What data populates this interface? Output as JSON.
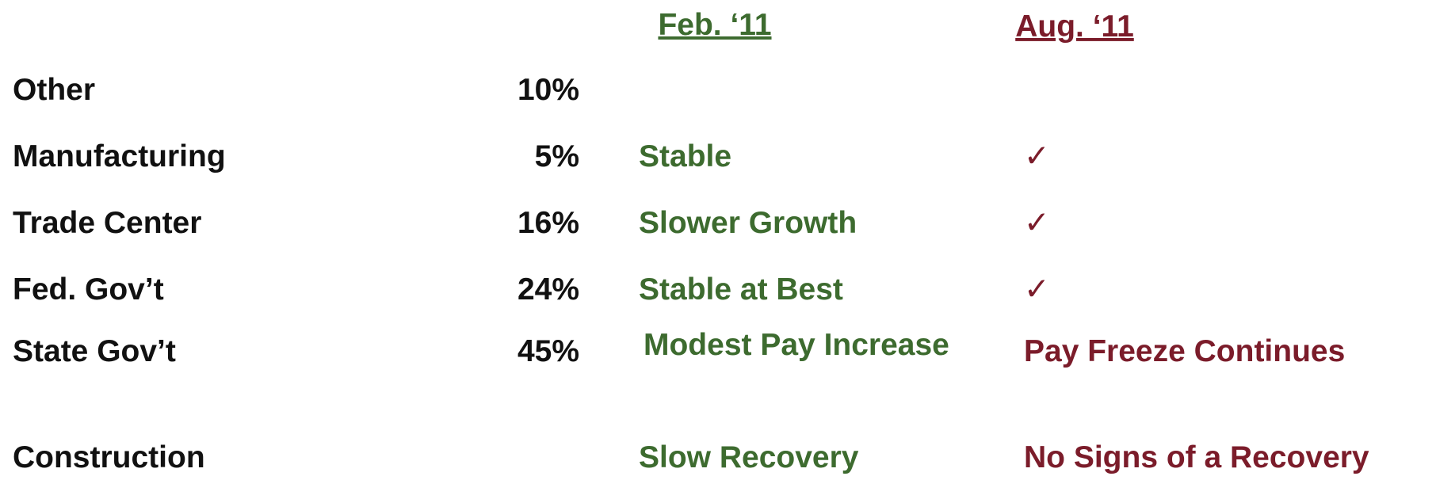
{
  "header": {
    "feb": "Feb. ‘11",
    "aug": "Aug. ‘11"
  },
  "rows": [
    {
      "label": "Other",
      "share": "10%"
    },
    {
      "label": "Manufacturing",
      "share": "5%",
      "feb": "Stable",
      "aug": "✓"
    },
    {
      "label": "Trade Center",
      "share": "16%",
      "feb": "Slower Growth",
      "aug": "✓"
    },
    {
      "label": "Fed. Gov’t",
      "share": "24%",
      "feb": "Stable at Best",
      "aug": "✓"
    },
    {
      "label": "State Gov’t",
      "share": "45%",
      "feb": "Modest Pay Increase",
      "aug": "Pay Freeze Continues"
    },
    {
      "label": "Construction",
      "feb": "Slow Recovery",
      "aug": "No Signs of a Recovery"
    }
  ]
}
